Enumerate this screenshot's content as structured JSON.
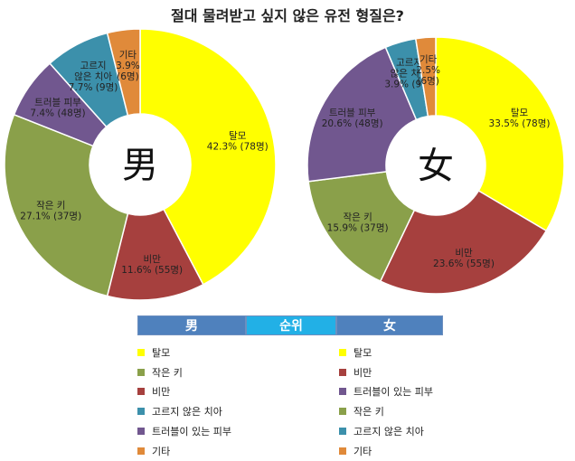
{
  "title": "절대 물려받고 싶지 않은 유전 형질은?",
  "colors": {
    "탈모": "#ffff00",
    "비만": "#a6403e",
    "작은 키": "#8aa04a",
    "트러블 피부": "#71578f",
    "고르지 않은 치아": "#3c90ab",
    "기타": "#e08a3a",
    "header_dark": "#4f81bd",
    "header_light": "#22b0e6"
  },
  "chart_data": [
    {
      "type": "donut",
      "center_label": "男",
      "start_angle_deg": 0,
      "slices": [
        {
          "category": "탈모",
          "label_lines": [
            "탈모",
            "42.3% (78명)"
          ],
          "percent": 42.3
        },
        {
          "category": "비만",
          "label_lines": [
            "비만",
            "11.6% (55명)"
          ],
          "percent": 11.6
        },
        {
          "category": "작은 키",
          "label_lines": [
            "작은 키",
            "27.1% (37명)"
          ],
          "percent": 27.1
        },
        {
          "category": "트러블 피부",
          "label_lines": [
            "트러블 피부",
            "7.4% (48명)"
          ],
          "percent": 7.4
        },
        {
          "category": "고르지 않은 치아",
          "label_lines": [
            "고르지",
            "않은 치아",
            "7.7% (9명)"
          ],
          "percent": 7.7
        },
        {
          "category": "기타",
          "label_lines": [
            "기타",
            "3.9%",
            "(6명)"
          ],
          "percent": 3.9
        }
      ]
    },
    {
      "type": "donut",
      "center_label": "女",
      "start_angle_deg": 0,
      "slices": [
        {
          "category": "탈모",
          "label_lines": [
            "탈모",
            "33.5% (78명)"
          ],
          "percent": 33.5
        },
        {
          "category": "비만",
          "label_lines": [
            "비만",
            "23.6% (55명)"
          ],
          "percent": 23.6
        },
        {
          "category": "작은 키",
          "label_lines": [
            "작은 키",
            "15.9% (37명)"
          ],
          "percent": 15.9
        },
        {
          "category": "트러블 피부",
          "label_lines": [
            "트러블 피부",
            "20.6% (48명)"
          ],
          "percent": 20.6
        },
        {
          "category": "고르지 않은 치아",
          "label_lines": [
            "고르지",
            "않은 치아",
            "3.9% (9명)"
          ],
          "percent": 3.9
        },
        {
          "category": "기타",
          "label_lines": [
            "기타",
            "2.5%",
            "(6명)"
          ],
          "percent": 2.5
        }
      ]
    }
  ],
  "ranking": {
    "header": {
      "men": "男",
      "rank": "순위",
      "women": "女"
    },
    "men": [
      {
        "label": "탈모",
        "category": "탈모"
      },
      {
        "label": "작은 키",
        "category": "작은 키"
      },
      {
        "label": "비만",
        "category": "비만"
      },
      {
        "label": "고르지 않은 치아",
        "category": "고르지 않은 치아"
      },
      {
        "label": "트러블이 있는 피부",
        "category": "트러블 피부"
      },
      {
        "label": "기타",
        "category": "기타"
      }
    ],
    "women": [
      {
        "label": "탈모",
        "category": "탈모"
      },
      {
        "label": "비만",
        "category": "비만"
      },
      {
        "label": "트러블이 있는 피부",
        "category": "트러블 피부"
      },
      {
        "label": "작은 키",
        "category": "작은 키"
      },
      {
        "label": "고르지 않은 치아",
        "category": "고르지 않은 치아"
      },
      {
        "label": "기타",
        "category": "기타"
      }
    ]
  }
}
